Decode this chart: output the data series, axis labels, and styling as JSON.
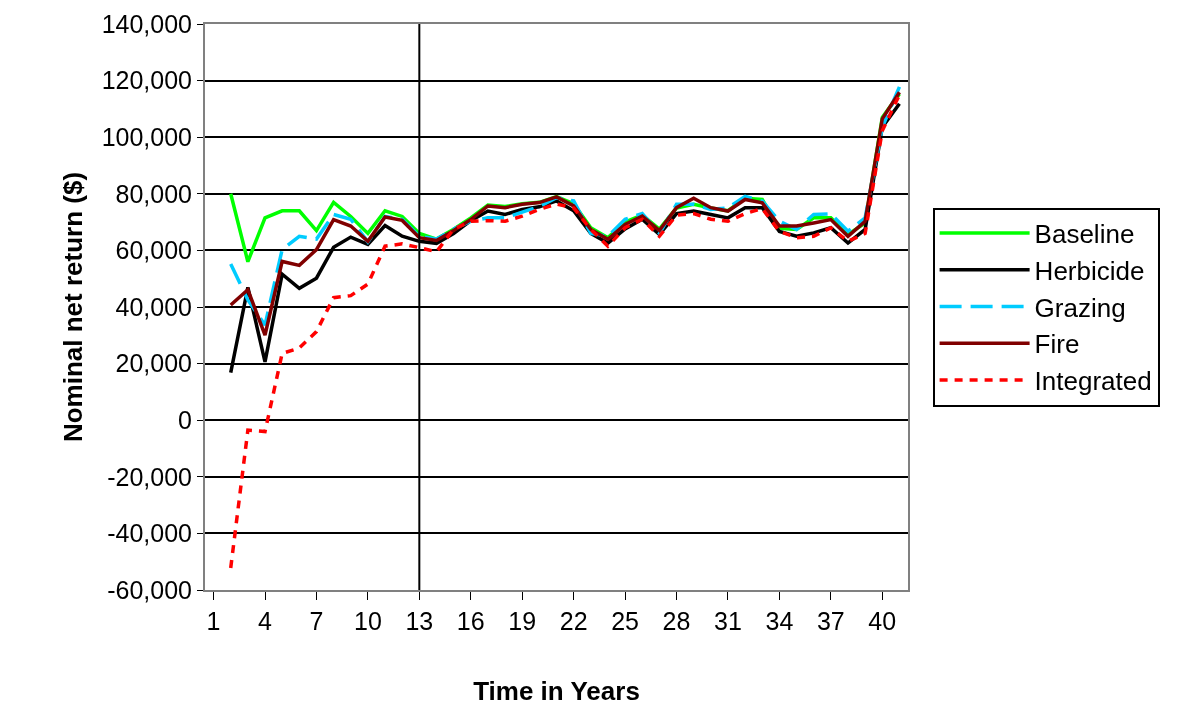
{
  "chart_data": {
    "type": "line",
    "xlabel": "Time in Years",
    "ylabel": "Nominal net return ($)",
    "x": [
      2,
      3,
      4,
      5,
      6,
      7,
      8,
      9,
      10,
      11,
      12,
      13,
      14,
      15,
      16,
      17,
      18,
      19,
      20,
      21,
      22,
      23,
      24,
      25,
      26,
      27,
      28,
      29,
      30,
      31,
      32,
      33,
      34,
      35,
      36,
      37,
      38,
      39,
      40,
      41
    ],
    "xlim": [
      0.5,
      41.5
    ],
    "xticks": [
      1,
      4,
      7,
      10,
      13,
      16,
      19,
      22,
      25,
      28,
      31,
      34,
      37,
      40
    ],
    "ylim": [
      -60000,
      140000
    ],
    "yticks": [
      {
        "value": -60000,
        "label": "-60,000"
      },
      {
        "value": -40000,
        "label": "-40,000"
      },
      {
        "value": -20000,
        "label": "-20,000"
      },
      {
        "value": 0,
        "label": "0"
      },
      {
        "value": 20000,
        "label": "20,000"
      },
      {
        "value": 40000,
        "label": "40,000"
      },
      {
        "value": 60000,
        "label": "60,000"
      },
      {
        "value": 80000,
        "label": "80,000"
      },
      {
        "value": 100000,
        "label": "100,000"
      },
      {
        "value": 120000,
        "label": "120,000"
      },
      {
        "value": 140000,
        "label": "140,000"
      }
    ],
    "grid": "y",
    "legend": "right",
    "marker": "none",
    "ref_lines": [
      {
        "axis": "x",
        "value": 13,
        "color": "#000000"
      }
    ],
    "series": [
      {
        "name": "Baseline",
        "color": "#00ff00",
        "line_style": "solid",
        "values": [
          80000,
          56000,
          71500,
          74000,
          74000,
          67000,
          77000,
          72000,
          66000,
          74000,
          72000,
          66000,
          64000,
          67500,
          71500,
          76000,
          75500,
          76500,
          77000,
          79000,
          76500,
          68000,
          64500,
          70000,
          72500,
          67500,
          75000,
          76300,
          75000,
          74000,
          78400,
          78000,
          67800,
          67400,
          71500,
          71500,
          65600,
          69700,
          107000,
          115300
        ]
      },
      {
        "name": "Herbicide",
        "color": "#000000",
        "line_style": "solid",
        "values": [
          16800,
          46900,
          20600,
          51600,
          46600,
          50200,
          61100,
          64700,
          62100,
          68800,
          65000,
          63200,
          62500,
          66000,
          70500,
          73900,
          72700,
          74500,
          75400,
          77500,
          74000,
          66000,
          62600,
          67600,
          71000,
          65600,
          73000,
          73900,
          72700,
          71500,
          75100,
          75100,
          66700,
          65000,
          66200,
          68000,
          62600,
          67400,
          103500,
          111800
        ]
      },
      {
        "name": "Grazing",
        "color": "#00ccff",
        "line_style": "dashed",
        "values": [
          55200,
          42500,
          33600,
          60300,
          65000,
          64000,
          72700,
          71000,
          63000,
          72000,
          71000,
          65000,
          64000,
          67500,
          70300,
          71500,
          71500,
          73500,
          75500,
          78600,
          77500,
          66000,
          65000,
          71000,
          73000,
          66000,
          76300,
          76300,
          74500,
          75000,
          79100,
          77400,
          70300,
          67400,
          72700,
          72900,
          66800,
          71500,
          103500,
          117800
        ]
      },
      {
        "name": "Fire",
        "color": "#800000",
        "line_style": "solid",
        "values": [
          40700,
          46100,
          30100,
          56100,
          54700,
          60300,
          70900,
          68600,
          63200,
          71800,
          70600,
          64500,
          63500,
          67000,
          70900,
          75700,
          75100,
          76300,
          76900,
          78900,
          75700,
          67400,
          63900,
          69200,
          72100,
          67000,
          75100,
          78400,
          75100,
          73900,
          78000,
          76800,
          68600,
          68600,
          69700,
          70900,
          65000,
          70300,
          106500,
          115900
        ]
      },
      {
        "name": "Integrated",
        "color": "#ff0000",
        "line_style": "dotted",
        "values": [
          -52200,
          -3500,
          -4000,
          23600,
          25500,
          31300,
          43300,
          44000,
          48100,
          61500,
          62300,
          61000,
          59500,
          67500,
          70300,
          70500,
          70300,
          72100,
          74500,
          76400,
          75000,
          67400,
          61500,
          68000,
          71000,
          65000,
          72500,
          73000,
          71000,
          70300,
          73000,
          74800,
          66700,
          64500,
          65000,
          68000,
          63200,
          66000,
          102300,
          115000
        ]
      }
    ]
  }
}
